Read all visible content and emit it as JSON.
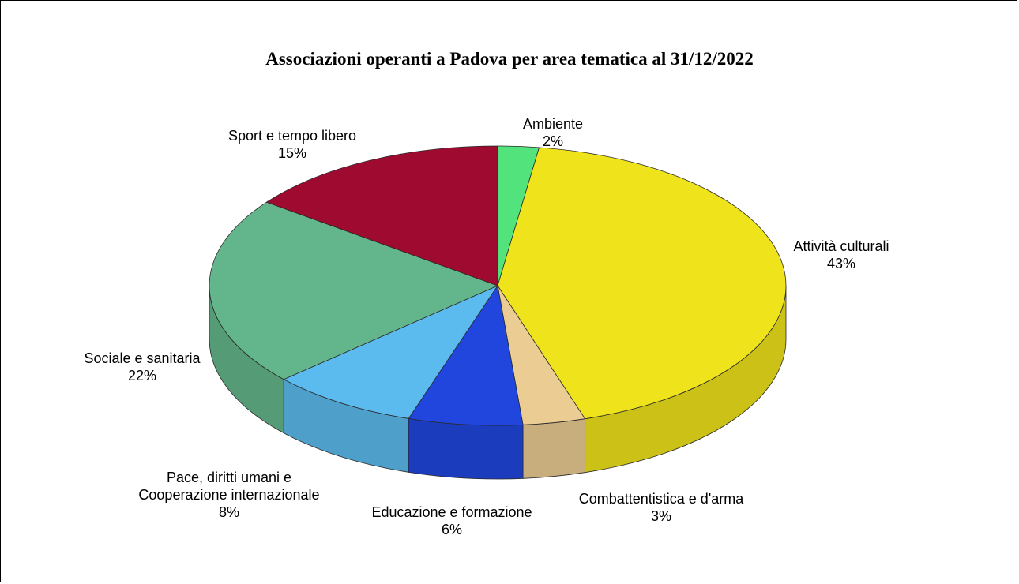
{
  "chart_data": {
    "type": "pie",
    "title": "Associazioni operanti a Padova per area tematica al 31/12/2022",
    "slices": [
      {
        "label_lines": [
          "Ambiente"
        ],
        "pct": "2%",
        "value": 2.3,
        "color": "#53e37c"
      },
      {
        "label_lines": [
          "Attività culturali"
        ],
        "pct": "43%",
        "value": 42.8,
        "color": "#efe31b"
      },
      {
        "label_lines": [
          "Combattentistica e d'arma"
        ],
        "pct": "3%",
        "value": 3.5,
        "color": "#ebcd93"
      },
      {
        "label_lines": [
          "Educazione e formazione"
        ],
        "pct": "6%",
        "value": 6.4,
        "color": "#2046de"
      },
      {
        "label_lines": [
          "Pace, diritti umani e",
          "Cooperazione internazionale"
        ],
        "pct": "8%",
        "value": 8.3,
        "color": "#5cbbee"
      },
      {
        "label_lines": [
          "Sociale e sanitaria"
        ],
        "pct": "22%",
        "value": 21.9,
        "color": "#63b68b"
      },
      {
        "label_lines": [
          "Sport e tempo libero"
        ],
        "pct": "15%",
        "value": 14.8,
        "color": "#9f0a30"
      }
    ],
    "start_angle": "top, clockwise",
    "style": "3d-tilted"
  }
}
